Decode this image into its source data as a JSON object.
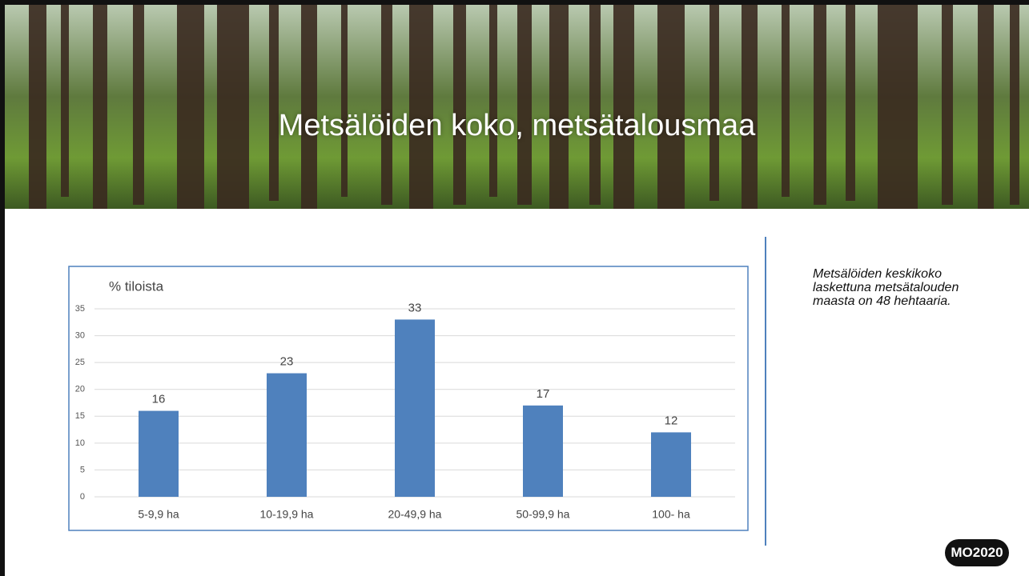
{
  "slide": {
    "title": "Metsälöiden koko, metsätalousmaa",
    "note_lines": [
      "Metsälöiden keskikoko",
      "laskettuna metsätalouden",
      "maasta on 48 hehtaaria."
    ],
    "logo": "MO2020"
  },
  "chart_data": {
    "type": "bar",
    "y_label": "% tiloista",
    "categories": [
      "5-9,9 ha",
      "10-19,9 ha",
      "20-49,9 ha",
      "50-99,9 ha",
      "100- ha"
    ],
    "values": [
      16,
      23,
      33,
      17,
      12
    ],
    "color": "#4f81bd",
    "ylim": [
      0,
      35
    ],
    "yticks": [
      0,
      5,
      10,
      15,
      20,
      25,
      30,
      35
    ],
    "grid": true
  }
}
